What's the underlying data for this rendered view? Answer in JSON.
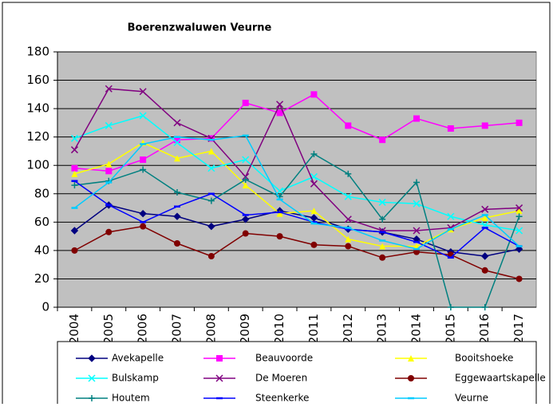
{
  "chart_data": {
    "type": "line",
    "title": "Boerenzwaluwen Veurne",
    "categories": [
      "2004",
      "2005",
      "2006",
      "2007",
      "2008",
      "2009",
      "2010",
      "2011",
      "2012",
      "2013",
      "2014",
      "2015",
      "2016",
      "2017"
    ],
    "ylim": [
      0,
      180
    ],
    "yticks": [
      0,
      20,
      40,
      60,
      80,
      100,
      120,
      140,
      160,
      180
    ],
    "grid": true,
    "plot_background": "#c0c0c0",
    "legend": "bottom",
    "series": [
      {
        "name": "Avekapelle",
        "color": "#000080",
        "marker": "diamond",
        "values": [
          54,
          72,
          66,
          64,
          57,
          62,
          68,
          63,
          55,
          53,
          48,
          39,
          36,
          41
        ]
      },
      {
        "name": "Beauvoorde",
        "color": "#ff00ff",
        "marker": "square",
        "values": [
          98,
          96,
          104,
          118,
          119,
          144,
          137,
          150,
          128,
          118,
          133,
          126,
          128,
          130
        ]
      },
      {
        "name": "Booitshoeke",
        "color": "#ffff00",
        "marker": "triangle",
        "values": [
          94,
          101,
          116,
          105,
          110,
          86,
          66,
          68,
          48,
          43,
          43,
          55,
          63,
          68
        ]
      },
      {
        "name": "Bulskamp",
        "color": "#00ffff",
        "marker": "x",
        "values": [
          119,
          128,
          135,
          116,
          98,
          104,
          82,
          92,
          78,
          74,
          73,
          64,
          58,
          54
        ]
      },
      {
        "name": "De Moeren",
        "color": "#800080",
        "marker": "x",
        "values": [
          111,
          154,
          152,
          130,
          119,
          92,
          143,
          87,
          62,
          54,
          54,
          56,
          69,
          70
        ]
      },
      {
        "name": "Eggewaartskapelle",
        "color": "#800000",
        "marker": "circle",
        "values": [
          40,
          53,
          57,
          45,
          36,
          52,
          50,
          44,
          43,
          35,
          39,
          37,
          26,
          20
        ]
      },
      {
        "name": "Houtem",
        "color": "#008080",
        "marker": "plus",
        "values": [
          86,
          89,
          97,
          81,
          75,
          90,
          78,
          108,
          94,
          62,
          88,
          0,
          0,
          64
        ]
      },
      {
        "name": "Steenkerke",
        "color": "#0000ff",
        "marker": "dash",
        "values": [
          89,
          72,
          60,
          71,
          80,
          65,
          67,
          60,
          55,
          53,
          46,
          35,
          56,
          43
        ]
      },
      {
        "name": "Veurne",
        "color": "#00ccff",
        "marker": "dash",
        "values": [
          70,
          88,
          115,
          120,
          118,
          121,
          76,
          59,
          56,
          47,
          41,
          55,
          65,
          43
        ]
      }
    ]
  }
}
